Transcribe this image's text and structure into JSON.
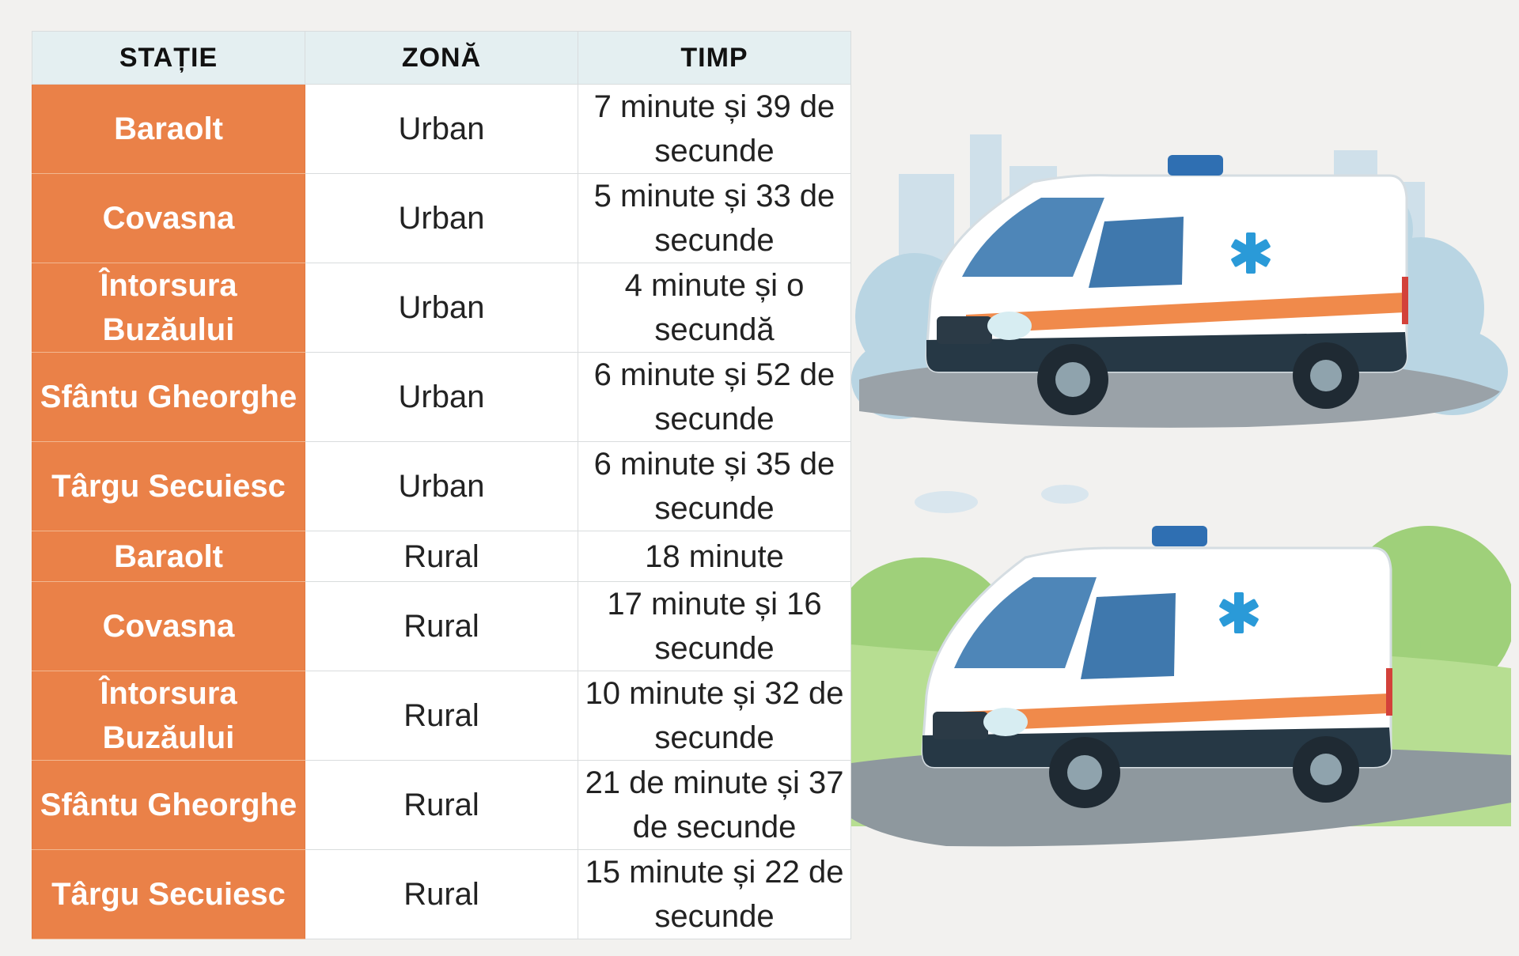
{
  "table": {
    "headers": [
      "STAȚIE",
      "ZONĂ",
      "TIMP"
    ],
    "rows": [
      {
        "station": "Baraolt",
        "zone": "Urban",
        "time": "7 minute și 39 de secunde"
      },
      {
        "station": "Covasna",
        "zone": "Urban",
        "time": "5 minute și 33 de secunde"
      },
      {
        "station": "Întorsura Buzăului",
        "zone": "Urban",
        "time": "4 minute și o secundă"
      },
      {
        "station": "Sfântu Gheorghe",
        "zone": "Urban",
        "time": "6 minute și 52 de secunde"
      },
      {
        "station": "Târgu Secuiesc",
        "zone": "Urban",
        "time": "6 minute și 35 de secunde"
      },
      {
        "station": "Baraolt",
        "zone": "Rural",
        "time": "18 minute"
      },
      {
        "station": "Covasna",
        "zone": "Rural",
        "time": "17 minute și 16 secunde"
      },
      {
        "station": "Întorsura Buzăului",
        "zone": "Rural",
        "time": "10 minute și 32 de secunde"
      },
      {
        "station": "Sfântu Gheorghe",
        "zone": "Rural",
        "time": "21 de minute și 37 de secunde"
      },
      {
        "station": "Târgu Secuiesc",
        "zone": "Rural",
        "time": "15 minute și 22 de secunde"
      }
    ]
  },
  "illustrations": {
    "top": "urban-ambulance-illustration",
    "bottom": "rural-ambulance-illustration"
  },
  "colors": {
    "station_cell": "#ea8148",
    "header_bg": "#e4eff1",
    "ambulance_stripe": "#f08a4b",
    "ambulance_cross": "#2a9ad8"
  }
}
